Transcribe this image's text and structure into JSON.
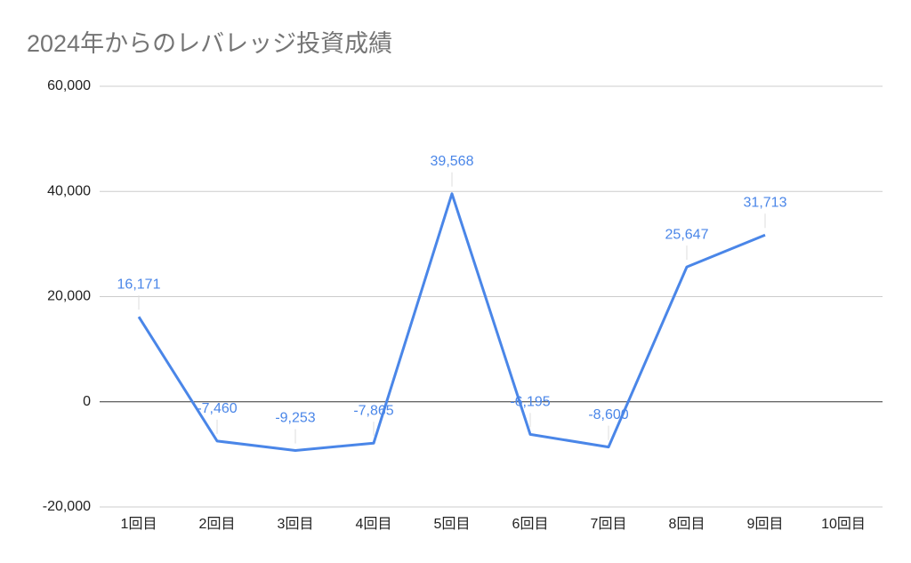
{
  "chart_data": {
    "type": "line",
    "title": "2024年からのレバレッジ投資成績",
    "categories": [
      "1回目",
      "2回目",
      "3回目",
      "4回目",
      "5回目",
      "6回目",
      "7回目",
      "8回目",
      "9回目",
      "10回目"
    ],
    "values": [
      16171,
      -7460,
      -9253,
      -7865,
      39568,
      -6195,
      -8600,
      25647,
      31713,
      null
    ],
    "value_labels": [
      "16,171",
      "-7,460",
      "-9,253",
      "-7,865",
      "39,568",
      "-6,195",
      "-8,600",
      "25,647",
      "31,713",
      null
    ],
    "color": "#4a86e8",
    "ylim": [
      -20000,
      60000
    ],
    "yticks": [
      {
        "value": -20000,
        "label": "-20,000"
      },
      0,
      {
        "value": 20000,
        "label": "20,000"
      },
      {
        "value": 40000,
        "label": "40,000"
      },
      {
        "value": 60000,
        "label": "60,000"
      }
    ],
    "grid": true
  }
}
